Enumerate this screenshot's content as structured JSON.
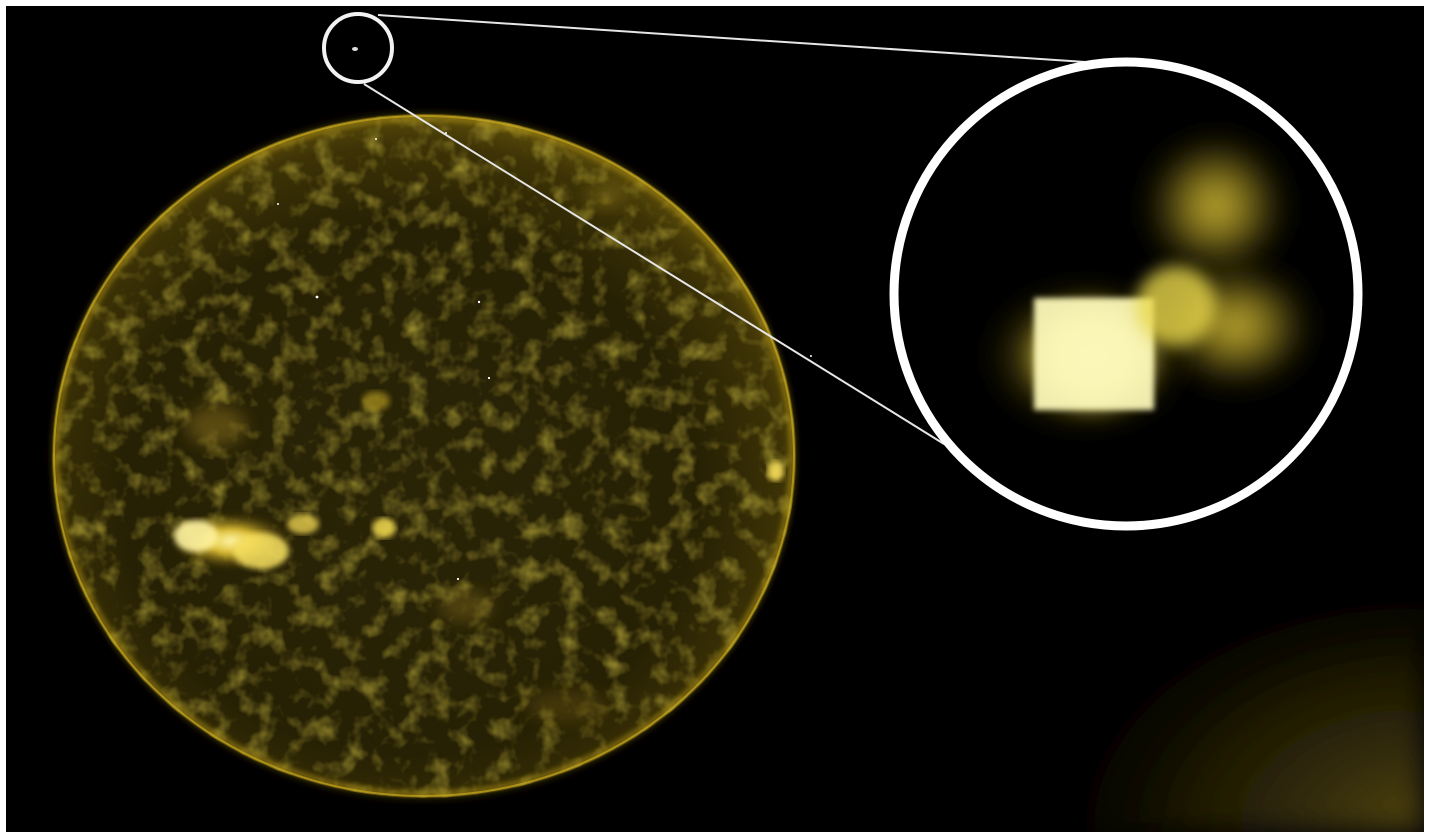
{
  "image": {
    "colors": {
      "background": "#000000",
      "frame": "#ffffff",
      "sun_base": "#2a2200",
      "sun_limb": "#b89a1a",
      "active_region": "#fff4a0",
      "callout_stroke": "#f2f2f2",
      "object_core": "#ffffcc",
      "object_glow": "#d8c43a"
    }
  }
}
